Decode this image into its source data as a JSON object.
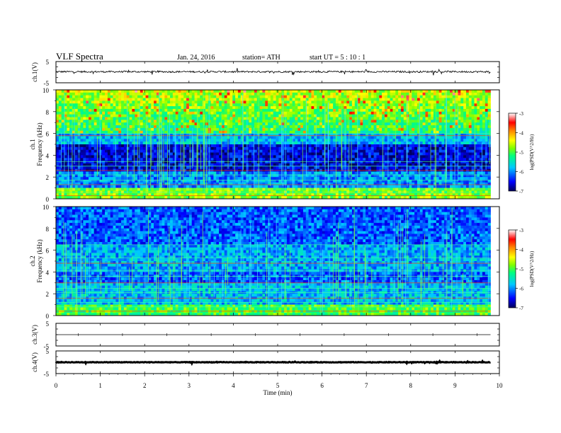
{
  "header": {
    "title": "VLF  Spectra",
    "date": "Jan. 24, 2016",
    "station": "station= ATH",
    "start_ut": "start  UT  =   5  : 10 : 1"
  },
  "chart_data": [
    {
      "type": "line",
      "ylabel": "ch.1(V)",
      "ylim": [
        -5,
        5
      ],
      "ytick_labels": [
        "5",
        "-5"
      ],
      "baseline": 0.2,
      "amplitude": 0.5,
      "trace_color": "#000000"
    },
    {
      "type": "heatmap",
      "ylabel_lines": [
        "ch.1",
        "Frequency (kHz)"
      ],
      "ylim": [
        0,
        10
      ],
      "yticks": [
        0,
        2,
        4,
        6,
        8,
        10
      ],
      "colorbar": {
        "label": "log(PSD(V^2/Hz)",
        "range": [
          -7,
          -3
        ],
        "tick_labels": [
          "-3",
          "-4",
          "-5",
          "-6",
          "-7"
        ]
      }
    },
    {
      "type": "heatmap",
      "ylabel_lines": [
        "ch.2",
        "Frequency (kHz)"
      ],
      "ylim": [
        0,
        10
      ],
      "yticks": [
        0,
        2,
        4,
        6,
        8,
        10
      ],
      "colorbar": {
        "label": "log(PSD(V^2/Hz)",
        "range": [
          -7,
          -3
        ],
        "tick_labels": [
          "-3",
          "-4",
          "-5",
          "-6",
          "-7"
        ]
      }
    },
    {
      "type": "line",
      "ylabel": "ch.3(V)",
      "ylim": [
        -5,
        5
      ],
      "ytick_labels": [
        "5",
        "-5"
      ],
      "baseline": 0,
      "amplitude": 0,
      "trace_color": "#000000"
    },
    {
      "type": "line",
      "ylabel": "ch.4(V)",
      "ylim": [
        -5,
        5
      ],
      "ytick_labels": [
        "5",
        "-5"
      ],
      "baseline": 0,
      "amplitude": 0.15,
      "trace_color": "#000000"
    }
  ],
  "x_axis": {
    "label": "Time  (min)",
    "range": [
      0,
      10
    ],
    "data_end": 9.8,
    "tick_labels": [
      "0",
      "1",
      "2",
      "3",
      "4",
      "5",
      "6",
      "7",
      "8",
      "9",
      "10"
    ]
  }
}
